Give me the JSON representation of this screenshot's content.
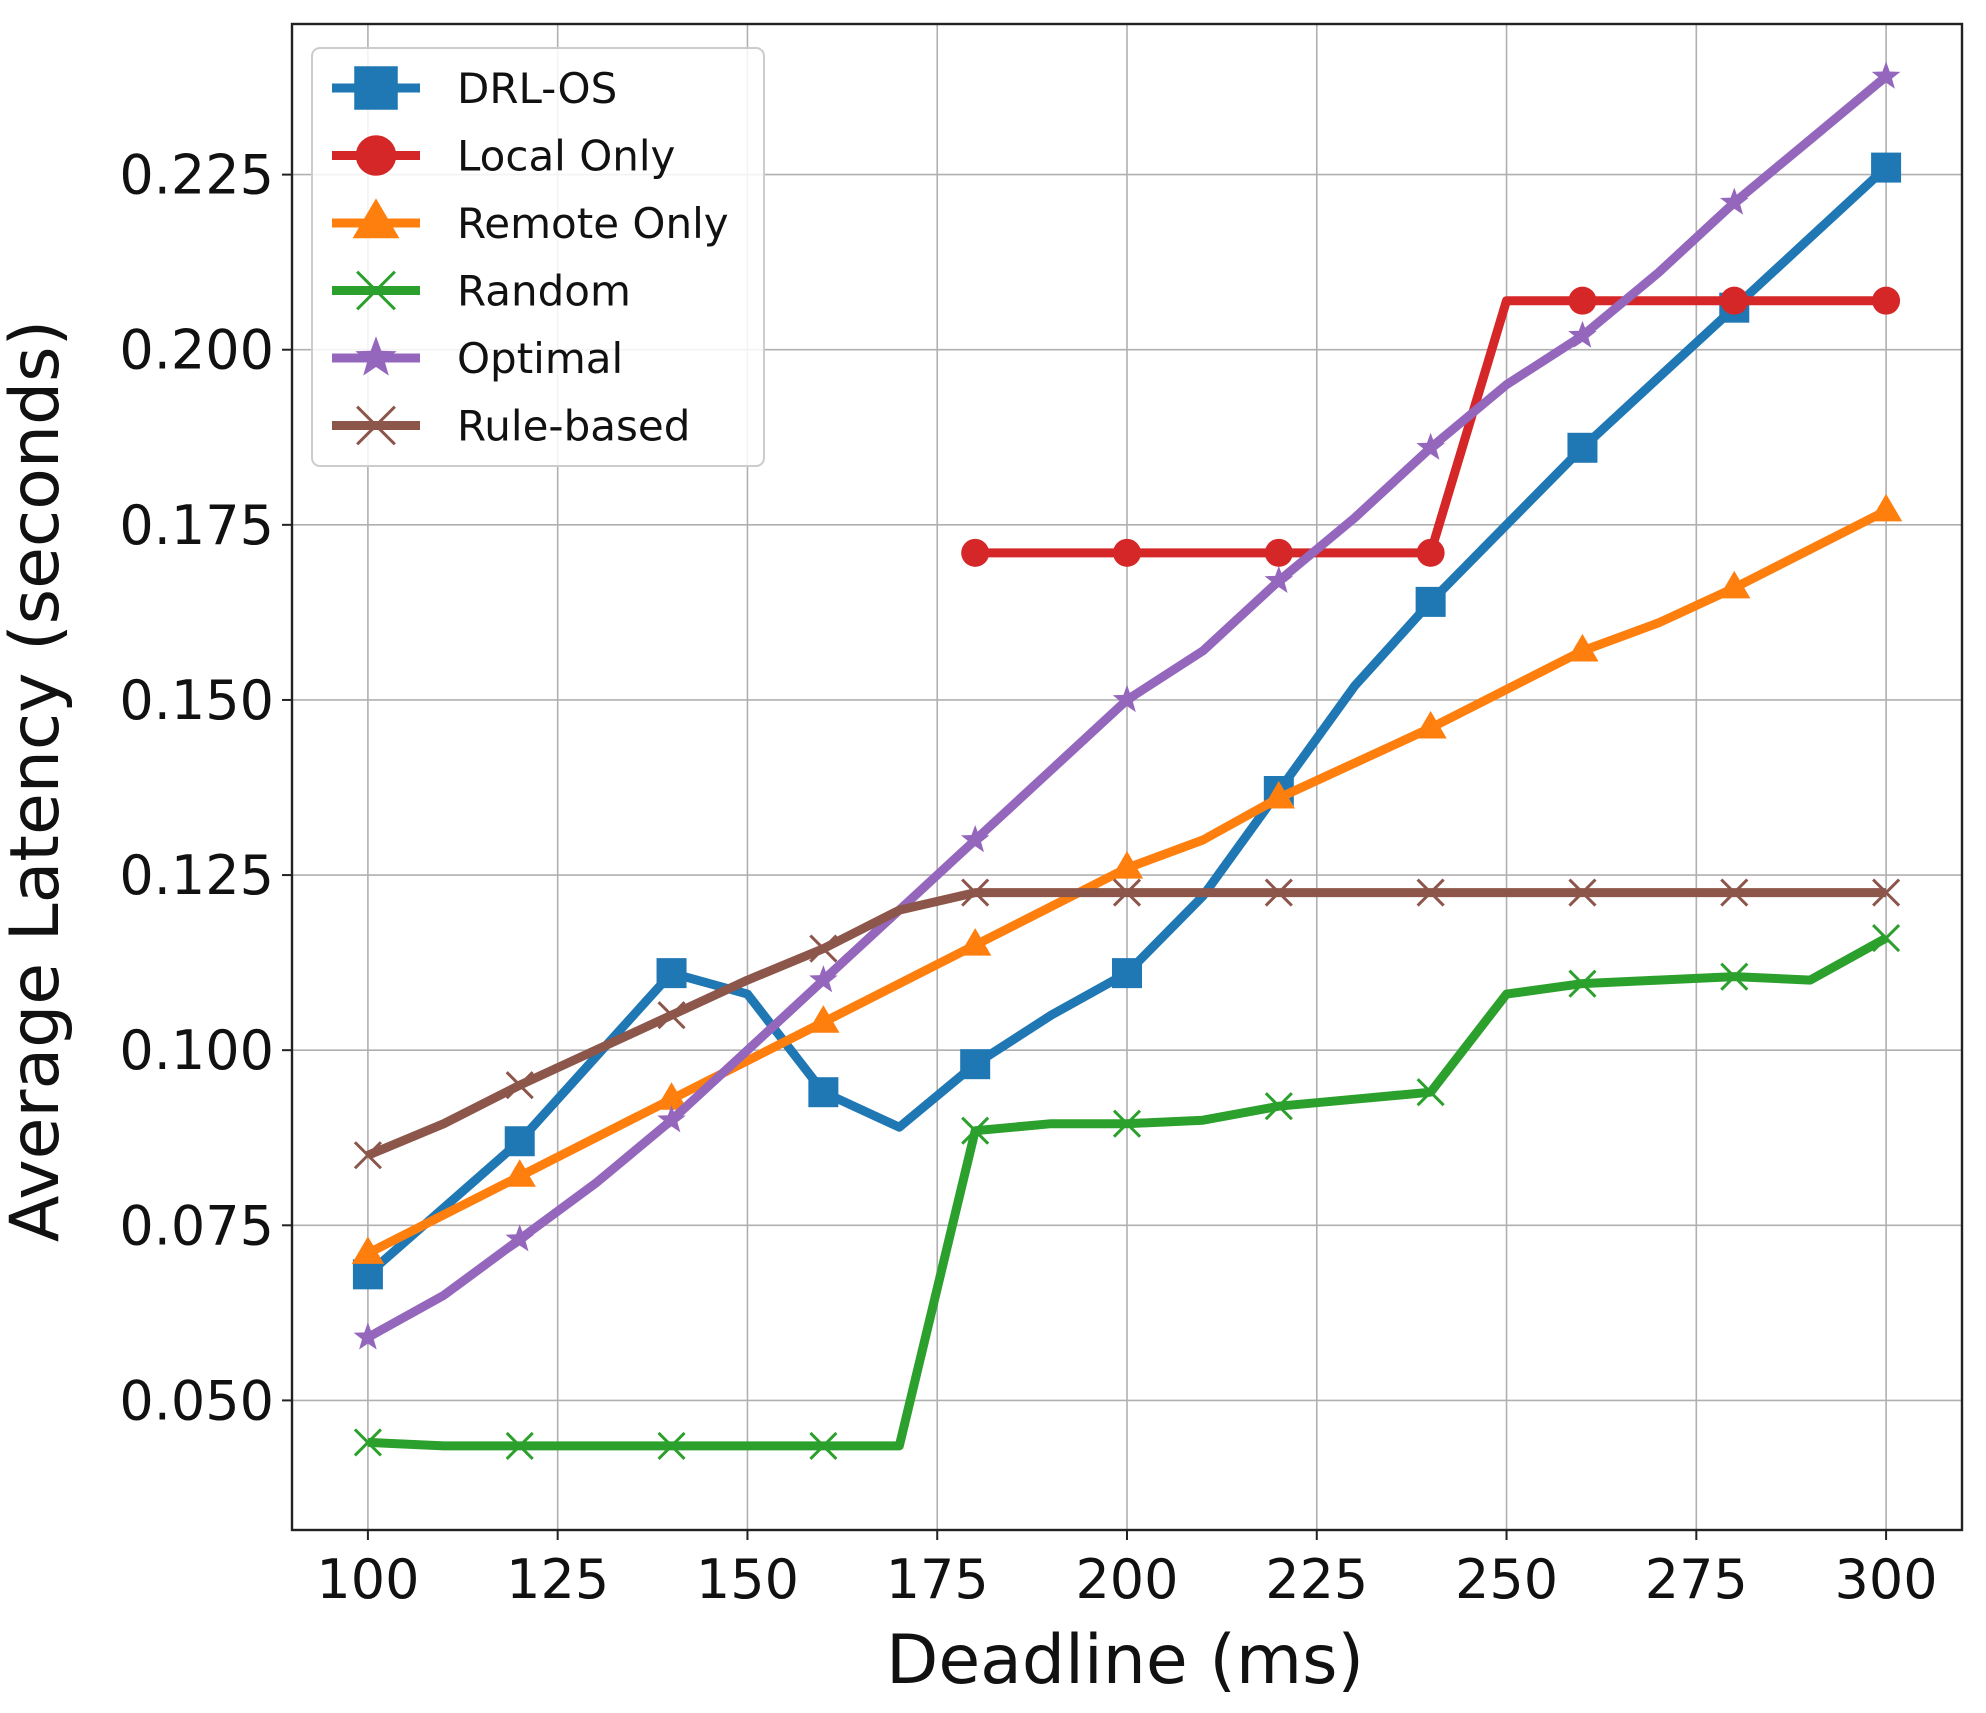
{
  "chart_data": {
    "type": "line",
    "title": "",
    "xlabel": "Deadline (ms)",
    "ylabel": "Average Latency (seconds)",
    "xlim": [
      90,
      310
    ],
    "ylim": [
      0.0315,
      0.2465
    ],
    "xticks": [
      100,
      125,
      150,
      175,
      200,
      225,
      250,
      275,
      300
    ],
    "xtick_labels": [
      "100",
      "125",
      "150",
      "175",
      "200",
      "225",
      "250",
      "275",
      "300"
    ],
    "yticks": [
      0.05,
      0.075,
      0.1,
      0.125,
      0.15,
      0.175,
      0.2,
      0.225
    ],
    "ytick_labels": [
      "0.050",
      "0.075",
      "0.100",
      "0.125",
      "0.150",
      "0.175",
      "0.200",
      "0.225"
    ],
    "grid": true,
    "legend_position": "upper-left",
    "series": [
      {
        "name": "DRL-OS",
        "color": "#1f77b4",
        "marker": "square",
        "x": [
          100,
          120,
          140,
          150,
          160,
          170,
          180,
          190,
          200,
          210,
          220,
          230,
          240,
          250,
          260,
          270,
          280,
          290,
          300
        ],
        "y": [
          0.068,
          0.087,
          0.111,
          0.108,
          0.094,
          0.089,
          0.098,
          0.105,
          0.111,
          0.122,
          0.137,
          0.152,
          0.164,
          0.175,
          0.186,
          0.196,
          0.206,
          0.216,
          0.226
        ],
        "marker_x": [
          100,
          120,
          140,
          160,
          180,
          200,
          220,
          240,
          260,
          280,
          300
        ]
      },
      {
        "name": "Local Only",
        "color": "#d62728",
        "marker": "circle",
        "x": [
          180,
          200,
          220,
          240,
          250,
          260,
          280,
          300
        ],
        "y": [
          0.171,
          0.171,
          0.171,
          0.171,
          0.207,
          0.207,
          0.207,
          0.207
        ],
        "marker_x": [
          180,
          200,
          220,
          240,
          260,
          280,
          300
        ]
      },
      {
        "name": "Remote Only",
        "color": "#ff7f0e",
        "marker": "triangle",
        "x": [
          100,
          120,
          140,
          160,
          180,
          200,
          210,
          220,
          240,
          260,
          270,
          280,
          300
        ],
        "y": [
          0.071,
          0.082,
          0.093,
          0.104,
          0.115,
          0.126,
          0.13,
          0.136,
          0.146,
          0.157,
          0.161,
          0.166,
          0.177
        ],
        "marker_x": [
          100,
          120,
          140,
          160,
          180,
          200,
          220,
          240,
          260,
          280,
          300
        ]
      },
      {
        "name": "Random",
        "color": "#2ca02c",
        "marker": "x",
        "x": [
          100,
          110,
          120,
          140,
          160,
          170,
          180,
          190,
          200,
          210,
          220,
          230,
          240,
          250,
          260,
          270,
          280,
          290,
          300
        ],
        "y": [
          0.044,
          0.0435,
          0.0435,
          0.0435,
          0.0435,
          0.0435,
          0.0885,
          0.0895,
          0.0895,
          0.09,
          0.092,
          0.093,
          0.094,
          0.108,
          0.1095,
          0.11,
          0.1105,
          0.11,
          0.116
        ],
        "marker_x": [
          100,
          120,
          140,
          160,
          180,
          200,
          220,
          240,
          260,
          280,
          300
        ]
      },
      {
        "name": "Optimal",
        "color": "#9467bd",
        "marker": "star",
        "x": [
          100,
          110,
          120,
          130,
          140,
          150,
          160,
          170,
          180,
          190,
          200,
          210,
          220,
          230,
          240,
          250,
          260,
          270,
          280,
          290,
          300
        ],
        "y": [
          0.059,
          0.065,
          0.073,
          0.081,
          0.09,
          0.1,
          0.11,
          0.12,
          0.13,
          0.14,
          0.15,
          0.157,
          0.167,
          0.176,
          0.186,
          0.195,
          0.202,
          0.211,
          0.221,
          0.23,
          0.239
        ],
        "marker_x": [
          100,
          120,
          140,
          160,
          180,
          200,
          220,
          240,
          260,
          280,
          300
        ]
      },
      {
        "name": "Rule-based",
        "color": "#8c564b",
        "marker": "x",
        "x": [
          100,
          110,
          120,
          130,
          140,
          150,
          160,
          170,
          180,
          200,
          220,
          240,
          260,
          280,
          300
        ],
        "y": [
          0.085,
          0.0895,
          0.095,
          0.1,
          0.105,
          0.11,
          0.1145,
          0.12,
          0.1225,
          0.1225,
          0.1225,
          0.1225,
          0.1225,
          0.1225,
          0.1225
        ],
        "marker_x": [
          100,
          120,
          140,
          160,
          180,
          200,
          220,
          240,
          260,
          280,
          300
        ]
      }
    ]
  }
}
